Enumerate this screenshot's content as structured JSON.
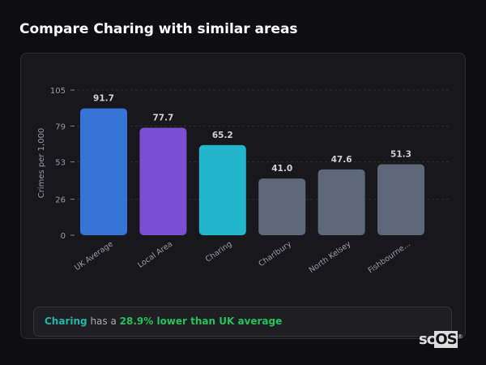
{
  "header": {
    "title": "Compare Charing with similar areas"
  },
  "chart_data": {
    "type": "bar",
    "title": "",
    "xlabel": "",
    "ylabel": "Crimes per 1,000",
    "ylim": [
      0,
      105
    ],
    "yticks": [
      0,
      26,
      53,
      79,
      105
    ],
    "grid": "horizontal dashed",
    "categories": [
      "UK Average",
      "Local Area",
      "Charing",
      "Charlbury",
      "North Kelsey",
      "Fishbourne..."
    ],
    "values": [
      91.7,
      77.7,
      65.2,
      41.0,
      47.6,
      51.3
    ],
    "value_labels": [
      "91.7",
      "77.7",
      "65.2",
      "41.0",
      "47.6",
      "51.3"
    ],
    "colors": [
      "#3574d6",
      "#7a4fd2",
      "#22b5cc",
      "#5d6778",
      "#5d6778",
      "#5d6778"
    ]
  },
  "summary": {
    "area": "Charing",
    "middle": " has a ",
    "comparison": "28.9% lower than UK average"
  },
  "watermark": "scOS"
}
